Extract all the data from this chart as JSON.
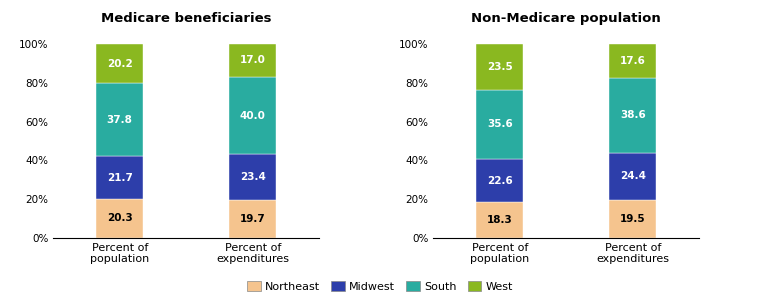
{
  "chart1_title": "Medicare beneficiaries",
  "chart2_title": "Non-Medicare population",
  "categories": [
    "Percent of\npopulation",
    "Percent of\nexpenditures"
  ],
  "regions": [
    "Northeast",
    "Midwest",
    "South",
    "West"
  ],
  "colors": [
    "#f5c48e",
    "#2d3eaa",
    "#29aca0",
    "#8ab820"
  ],
  "chart1_data": {
    "Percent of\npopulation": [
      20.3,
      21.7,
      37.8,
      20.2
    ],
    "Percent of\nexpenditures": [
      19.7,
      23.4,
      40.0,
      17.0
    ]
  },
  "chart2_data": {
    "Percent of\npopulation": [
      18.3,
      22.6,
      35.6,
      23.5
    ],
    "Percent of\nexpenditures": [
      19.5,
      24.4,
      38.6,
      17.6
    ]
  },
  "yticks": [
    0,
    20,
    40,
    60,
    80,
    100
  ],
  "ytick_labels": [
    "0%",
    "20%",
    "40%",
    "60%",
    "80%",
    "100%"
  ],
  "label_fontsize": 7.5,
  "title_fontsize": 9.5,
  "bar_width": 0.35,
  "legend_fontsize": 8,
  "tick_fontsize": 7.5,
  "xtick_fontsize": 8
}
